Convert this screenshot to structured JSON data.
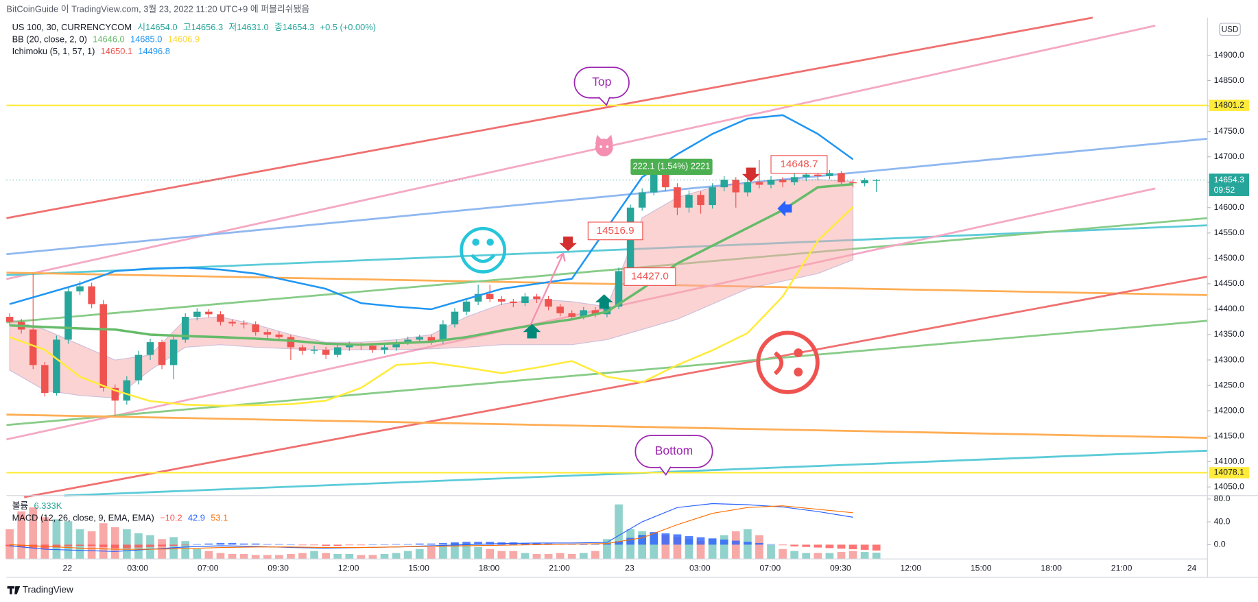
{
  "header": {
    "publisher": "BitCoinGuide 이 TradingView.com, 3월 23, 2022 11:20 UTC+9 에 퍼블리쉬됐음"
  },
  "legend": {
    "symbol": "US 100, 30, CURRENCYCOM",
    "ohlc": [
      "시14654.0",
      "고14656.3",
      "저14631.0",
      "종14654.3"
    ],
    "change": "+0.5 (+0.00%)",
    "bb": {
      "name": "BB (20, close, 2, 0)",
      "values": [
        "14646.0",
        "14685.0",
        "14606.9"
      ]
    },
    "ichimoku": {
      "name": "Ichimoku (5, 1, 57, 1)",
      "values": [
        "14650.1",
        "14496.8"
      ]
    },
    "volume": {
      "name": "볼륨",
      "value": "6.333K"
    },
    "macd": {
      "name": "MACD (12, 26, close, 9, EMA, EMA)",
      "values": [
        "−10.2",
        "42.9",
        "53.1"
      ]
    }
  },
  "chart_data": {
    "type": "candlestick",
    "currency": "USD",
    "ylim": [
      14033,
      14974
    ],
    "yticks": [
      {
        "value": 14050,
        "label": "14050.0"
      },
      {
        "value": 14100,
        "label": "14100.0"
      },
      {
        "value": 14150,
        "label": "14150.0"
      },
      {
        "value": 14200,
        "label": "14200.0"
      },
      {
        "value": 14250,
        "label": "14250.0"
      },
      {
        "value": 14300,
        "label": "14300.0"
      },
      {
        "value": 14350,
        "label": "14350.0"
      },
      {
        "value": 14400,
        "label": "14400.0"
      },
      {
        "value": 14450,
        "label": "14450.0"
      },
      {
        "value": 14500,
        "label": "14500.0"
      },
      {
        "value": 14550,
        "label": "14550.0"
      },
      {
        "value": 14600,
        "label": "14600.0"
      },
      {
        "value": 14650,
        "label": "14650.0"
      },
      {
        "value": 14700,
        "label": "14700.0"
      },
      {
        "value": 14750,
        "label": "14750.0"
      },
      {
        "value": 14800,
        "label": "14800.0"
      },
      {
        "value": 14850,
        "label": "14850.0"
      },
      {
        "value": 14900,
        "label": "14900.0"
      }
    ],
    "time_labels": [
      "22",
      "03:00",
      "07:00",
      "09:30",
      "12:00",
      "15:00",
      "18:00",
      "21:00",
      "23",
      "03:00",
      "07:00",
      "09:30",
      "12:00",
      "15:00",
      "18:00",
      "21:00",
      "24"
    ],
    "up_color": "#26a69a",
    "down_color": "#ef5350",
    "candles": [
      [
        14385,
        14392,
        14368,
        14375
      ],
      [
        14375,
        14381,
        14352,
        14360
      ],
      [
        14360,
        14470,
        14282,
        14290
      ],
      [
        14290,
        14296,
        14228,
        14235
      ],
      [
        14235,
        14348,
        14230,
        14340
      ],
      [
        14340,
        14442,
        14332,
        14435
      ],
      [
        14435,
        14455,
        14428,
        14445
      ],
      [
        14445,
        14452,
        14402,
        14410
      ],
      [
        14410,
        14418,
        14238,
        14245
      ],
      [
        14245,
        14252,
        14190,
        14220
      ],
      [
        14220,
        14268,
        14212,
        14260
      ],
      [
        14260,
        14318,
        14252,
        14310
      ],
      [
        14310,
        14342,
        14300,
        14335
      ],
      [
        14335,
        14340,
        14282,
        14290
      ],
      [
        14290,
        14348,
        14262,
        14340
      ],
      [
        14340,
        14392,
        14334,
        14385
      ],
      [
        14385,
        14402,
        14378,
        14395
      ],
      [
        14395,
        14400,
        14384,
        14390
      ],
      [
        14390,
        14396,
        14368,
        14375
      ],
      [
        14375,
        14380,
        14366,
        14372
      ],
      [
        14372,
        14378,
        14362,
        14370
      ],
      [
        14370,
        14376,
        14348,
        14355
      ],
      [
        14355,
        14360,
        14342,
        14350
      ],
      [
        14350,
        14356,
        14338,
        14345
      ],
      [
        14345,
        14350,
        14300,
        14325
      ],
      [
        14325,
        14330,
        14310,
        14318
      ],
      [
        14318,
        14328,
        14312,
        14320
      ],
      [
        14320,
        14326,
        14302,
        14310
      ],
      [
        14310,
        14332,
        14305,
        14325
      ],
      [
        14325,
        14336,
        14318,
        14330
      ],
      [
        14330,
        14334,
        14320,
        14328
      ],
      [
        14328,
        14333,
        14314,
        14320
      ],
      [
        14320,
        14330,
        14312,
        14325
      ],
      [
        14325,
        14340,
        14318,
        14335
      ],
      [
        14335,
        14346,
        14330,
        14340
      ],
      [
        14340,
        14350,
        14334,
        14345
      ],
      [
        14345,
        14350,
        14330,
        14338
      ],
      [
        14338,
        14378,
        14332,
        14370
      ],
      [
        14370,
        14402,
        14364,
        14395
      ],
      [
        14395,
        14420,
        14388,
        14415
      ],
      [
        14415,
        14448,
        14408,
        14430
      ],
      [
        14430,
        14448,
        14414,
        14420
      ],
      [
        14420,
        14426,
        14408,
        14415
      ],
      [
        14415,
        14420,
        14404,
        14412
      ],
      [
        14412,
        14432,
        14406,
        14425
      ],
      [
        14425,
        14430,
        14412,
        14420
      ],
      [
        14420,
        14426,
        14398,
        14405
      ],
      [
        14405,
        14410,
        14386,
        14392
      ],
      [
        14392,
        14398,
        14378,
        14385
      ],
      [
        14385,
        14404,
        14380,
        14398
      ],
      [
        14398,
        14404,
        14384,
        14390
      ],
      [
        14390,
        14412,
        14384,
        14405
      ],
      [
        14405,
        14482,
        14400,
        14475
      ],
      [
        14475,
        14606,
        14470,
        14600
      ],
      [
        14600,
        14638,
        14594,
        14630
      ],
      [
        14630,
        14690,
        14624,
        14680
      ],
      [
        14680,
        14686,
        14632,
        14640
      ],
      [
        14640,
        14648,
        14585,
        14600
      ],
      [
        14600,
        14634,
        14590,
        14625
      ],
      [
        14625,
        14632,
        14588,
        14605
      ],
      [
        14605,
        14648,
        14598,
        14640
      ],
      [
        14640,
        14662,
        14632,
        14655
      ],
      [
        14655,
        14660,
        14600,
        14630
      ],
      [
        14630,
        14658,
        14622,
        14650
      ],
      [
        14650,
        14694,
        14638,
        14645
      ],
      [
        14645,
        14662,
        14638,
        14655
      ],
      [
        14655,
        14660,
        14640,
        14650
      ],
      [
        14650,
        14668,
        14644,
        14660
      ],
      [
        14660,
        14672,
        14652,
        14665
      ],
      [
        14665,
        14670,
        14655,
        14662
      ],
      [
        14662,
        14674,
        14656,
        14668
      ],
      [
        14668,
        14672,
        14644,
        14650
      ],
      [
        14650,
        14656,
        14640,
        14648
      ],
      [
        14648,
        14658,
        14642,
        14654
      ],
      [
        14654.0,
        14656.3,
        14631.0,
        14654.3
      ]
    ],
    "indicator_x": [
      0,
      3,
      6,
      9,
      12,
      15,
      18,
      21,
      24,
      27,
      30,
      33,
      36,
      39,
      42,
      45,
      48,
      51,
      54,
      57,
      60,
      63,
      66,
      69,
      72
    ],
    "cloud": {
      "color": "#f8a8a8",
      "upper": [
        14380,
        14360,
        14330,
        14300,
        14310,
        14380,
        14385,
        14370,
        14350,
        14335,
        14335,
        14340,
        14350,
        14385,
        14410,
        14420,
        14415,
        14405,
        14580,
        14620,
        14640,
        14650,
        14655,
        14655,
        14652
      ],
      "lower": [
        14280,
        14240,
        14230,
        14225,
        14280,
        14325,
        14330,
        14325,
        14322,
        14320,
        14320,
        14320,
        14322,
        14325,
        14330,
        14330,
        14330,
        14340,
        14360,
        14380,
        14410,
        14440,
        14455,
        14470,
        14497
      ]
    },
    "overlays": [
      {
        "color": "#2196f3",
        "values": [
          14410,
          14430,
          14450,
          14475,
          14480,
          14482,
          14478,
          14470,
          14455,
          14440,
          14412,
          14405,
          14400,
          14420,
          14440,
          14450,
          14460,
          14560,
          14660,
          14705,
          14745,
          14775,
          14782,
          14745,
          14695
        ]
      },
      {
        "color": "#66bb6a",
        "values": [
          14368,
          14365,
          14362,
          14360,
          14350,
          14347,
          14345,
          14342,
          14338,
          14332,
          14330,
          14333,
          14336,
          14345,
          14358,
          14370,
          14380,
          14395,
          14440,
          14490,
          14525,
          14560,
          14595,
          14640,
          14646
        ]
      },
      {
        "color": "#ffeb3b",
        "values": [
          14345,
          14320,
          14267,
          14240,
          14219,
          14212,
          14210,
          14211,
          14213,
          14220,
          14245,
          14290,
          14295,
          14285,
          14274,
          14285,
          14298,
          14267,
          14256,
          14290,
          14319,
          14353,
          14425,
          14535,
          14601
        ]
      }
    ],
    "levels": [
      14801.2,
      14078.1
    ],
    "level_color": "#ffeb3b",
    "last_price": {
      "value": 14654.3,
      "countdown": "09:52",
      "color": "#26a69a"
    },
    "annotations": {
      "top": "Top",
      "bottom": "Bottom",
      "price_labels": [
        "14516.9",
        "14427.0",
        "14648.7"
      ],
      "measure": "222.1 (1.54%) 2221"
    },
    "volume": {
      "values": [
        30,
        48,
        52,
        42,
        40,
        38,
        30,
        28,
        36,
        32,
        30,
        26,
        24,
        20,
        22,
        18,
        10,
        8,
        6,
        5,
        5,
        4,
        4,
        4,
        5,
        6,
        8,
        6,
        5,
        5,
        4,
        4,
        5,
        6,
        8,
        10,
        12,
        14,
        16,
        15,
        12,
        10,
        8,
        8,
        6,
        5,
        5,
        6,
        5,
        6,
        8,
        20,
        55,
        30,
        28,
        26,
        24,
        22,
        20,
        18,
        20,
        24,
        28,
        30,
        24,
        14,
        10,
        8,
        6,
        6,
        6,
        7,
        8,
        7,
        6.333
      ]
    },
    "macd": {
      "ylim": [
        -25,
        86
      ],
      "yticks": [
        {
          "value": 0,
          "label": "0.0"
        },
        {
          "value": 40,
          "label": "40.0"
        },
        {
          "value": 80,
          "label": "80.0"
        }
      ],
      "histogram": [
        -3,
        -4,
        -6,
        -7,
        -5,
        -3,
        -2,
        -2,
        -4,
        -6,
        -6,
        -5,
        -4,
        -3,
        -2,
        -1,
        1,
        2,
        3,
        3,
        2,
        2,
        1,
        1,
        0,
        -1,
        -1,
        -2,
        -2,
        -1,
        -1,
        0,
        0,
        1,
        1,
        2,
        2,
        3,
        4,
        5,
        5,
        5,
        4,
        4,
        3,
        3,
        2,
        1,
        1,
        0,
        1,
        2,
        6,
        12,
        17,
        22,
        20,
        18,
        15,
        13,
        11,
        9,
        7,
        5,
        3,
        1,
        -1,
        -3,
        -4,
        -5,
        -6,
        -7,
        -8,
        -9,
        -10.2
      ],
      "macd": [
        -2,
        -8,
        -10,
        -12,
        -8,
        -4,
        -2,
        -3,
        -5,
        -6,
        -5,
        -4,
        -2,
        0,
        2,
        3,
        3,
        4,
        40,
        65,
        72,
        70,
        66,
        58,
        48
      ],
      "signal": [
        0,
        -3,
        -6,
        -8,
        -8,
        -7,
        -5,
        -4,
        -4,
        -5,
        -5,
        -4,
        -3,
        -2,
        -1,
        0,
        1,
        2,
        12,
        35,
        55,
        65,
        68,
        62,
        56
      ],
      "macd_color": "#2962ff",
      "signal_color": "#ff6d00",
      "hist_up_color": "#2962ff",
      "hist_down_color": "#ff5252"
    }
  },
  "footer": "TradingView"
}
